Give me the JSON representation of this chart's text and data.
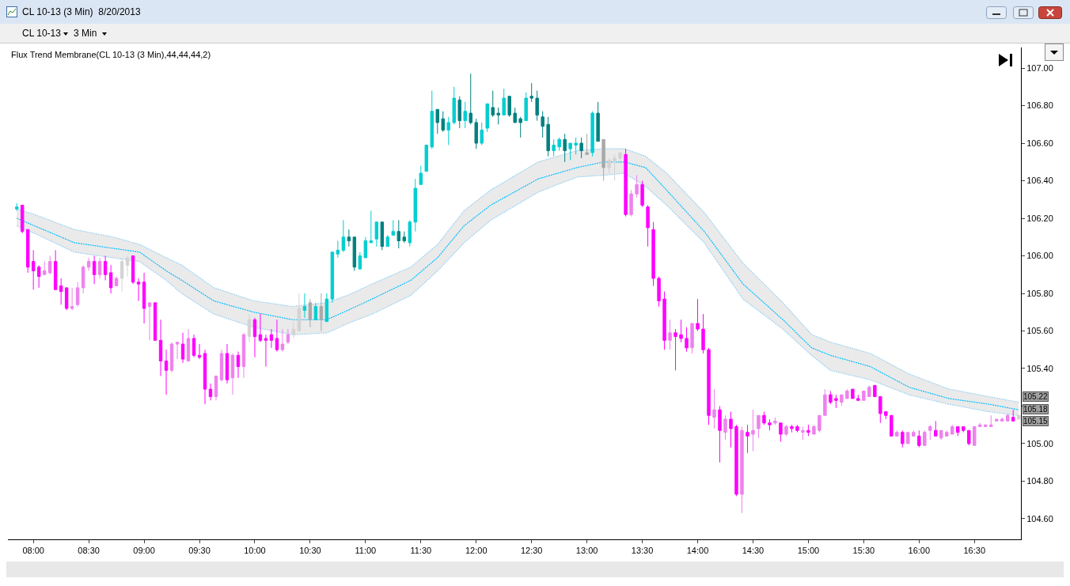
{
  "chart_data": {
    "type": "candlestick",
    "title": "CL 10-13 (3 Min)  8/20/2013",
    "subtitle": "Flux Trend Membrane(CL 10-13 (3 Min),44,44,44,2)",
    "annotations": [
      "CL 10-13",
      "3 Min",
      "105.22",
      "105.18",
      "105.15"
    ],
    "xlim": [
      7.77,
      16.92
    ],
    "xticks": [
      {
        "value": 8,
        "label": "08:00"
      },
      {
        "value": 8.5,
        "label": "08:30"
      },
      {
        "value": 9,
        "label": "09:00"
      },
      {
        "value": 9.5,
        "label": "09:30"
      },
      {
        "value": 10,
        "label": "10:00"
      },
      {
        "value": 10.5,
        "label": "10:30"
      },
      {
        "value": 11,
        "label": "11:00"
      },
      {
        "value": 11.5,
        "label": "11:30"
      },
      {
        "value": 12,
        "label": "12:00"
      },
      {
        "value": 12.5,
        "label": "12:30"
      },
      {
        "value": 13,
        "label": "13:00"
      },
      {
        "value": 13.5,
        "label": "13:30"
      },
      {
        "value": 14,
        "label": "14:00"
      },
      {
        "value": 14.5,
        "label": "14:30"
      },
      {
        "value": 15,
        "label": "15:00"
      },
      {
        "value": 15.5,
        "label": "15:30"
      },
      {
        "value": 16,
        "label": "16:00"
      },
      {
        "value": 16.5,
        "label": "16:30"
      }
    ],
    "ylim": [
      104.49,
      107.11
    ],
    "yticks": [
      {
        "value": 104.6,
        "label": "104.60"
      },
      {
        "value": 104.8,
        "label": "104.80"
      },
      {
        "value": 105,
        "label": "105.00"
      },
      {
        "value": 105.2,
        "label": null
      },
      {
        "value": 105.4,
        "label": "105.40"
      },
      {
        "value": 105.6,
        "label": "105.60"
      },
      {
        "value": 105.8,
        "label": "105.80"
      },
      {
        "value": 106,
        "label": "106.00"
      },
      {
        "value": 106.2,
        "label": "106.20"
      },
      {
        "value": 106.4,
        "label": "106.40"
      },
      {
        "value": 106.6,
        "label": "106.60"
      },
      {
        "value": 106.8,
        "label": "106.80"
      },
      {
        "value": 107,
        "label": "107.00"
      }
    ],
    "series": [
      {
        "type": "line",
        "color": "#87cefa",
        "line_style": "dotted",
        "x": [
          7.85,
          8.01,
          8.37,
          8.72,
          8.96,
          9.2,
          9.34,
          9.63,
          9.99,
          10.34,
          10.65,
          10.84,
          11.06,
          11.41,
          11.65,
          11.89,
          12.13,
          12.56,
          12.91,
          13.15,
          13.34,
          13.53,
          13.72,
          14.06,
          14.41,
          14.77,
          15.03,
          15.2,
          15.56,
          15.91,
          16.27,
          16.63,
          16.9
        ],
        "values": [
          106.25,
          106.22,
          106.14,
          106.1,
          106.06,
          105.99,
          105.95,
          105.83,
          105.76,
          105.73,
          105.75,
          105.79,
          105.85,
          105.94,
          106.06,
          106.24,
          106.35,
          106.5,
          106.56,
          106.57,
          106.57,
          106.53,
          106.44,
          106.23,
          105.96,
          105.75,
          105.58,
          105.54,
          105.48,
          105.37,
          105.29,
          105.25,
          105.22
        ]
      },
      {
        "type": "line",
        "color": "#87cefa",
        "line_style": "dotted",
        "x": [
          7.85,
          8.01,
          8.37,
          8.72,
          8.96,
          9.2,
          9.34,
          9.63,
          9.99,
          10.34,
          10.65,
          10.84,
          11.06,
          11.41,
          11.65,
          11.89,
          12.13,
          12.56,
          12.91,
          13.15,
          13.34,
          13.53,
          13.72,
          14.06,
          14.41,
          14.77,
          15.03,
          15.2,
          15.56,
          15.91,
          16.27,
          16.63,
          16.9
        ],
        "values": [
          106.16,
          106.12,
          106.02,
          105.99,
          105.97,
          105.87,
          105.8,
          105.69,
          105.62,
          105.58,
          105.59,
          105.64,
          105.69,
          105.79,
          105.92,
          106.07,
          106.19,
          106.34,
          106.42,
          106.43,
          106.44,
          106.37,
          106.27,
          106.07,
          105.77,
          105.61,
          105.47,
          105.39,
          105.34,
          105.26,
          105.21,
          105.17,
          105.15
        ]
      },
      {
        "type": "line",
        "color": "#00bfff",
        "line_style": "dotted",
        "x": [
          7.85,
          8.01,
          8.37,
          8.72,
          8.96,
          9.2,
          9.34,
          9.63,
          9.99,
          10.34,
          10.65,
          10.84,
          11.06,
          11.41,
          11.65,
          11.89,
          12.13,
          12.56,
          12.91,
          13.15,
          13.34,
          13.53,
          13.72,
          14.06,
          14.41,
          14.77,
          15.03,
          15.2,
          15.56,
          15.91,
          16.27,
          16.63,
          16.9
        ],
        "values": [
          106.2,
          106.16,
          106.07,
          106.04,
          106.02,
          105.92,
          105.87,
          105.76,
          105.7,
          105.66,
          105.66,
          105.71,
          105.77,
          105.87,
          105.99,
          106.16,
          106.27,
          106.41,
          106.47,
          106.5,
          106.5,
          106.47,
          106.35,
          106.13,
          105.85,
          105.66,
          105.51,
          105.47,
          105.41,
          105.3,
          105.24,
          105.21,
          105.18
        ],
        "upper": [
          106.25,
          106.22,
          106.14,
          106.1,
          106.06,
          105.99,
          105.95,
          105.83,
          105.76,
          105.73,
          105.75,
          105.79,
          105.85,
          105.94,
          106.06,
          106.24,
          106.35,
          106.5,
          106.56,
          106.57,
          106.57,
          106.53,
          106.44,
          106.23,
          105.96,
          105.75,
          105.58,
          105.54,
          105.48,
          105.37,
          105.29,
          105.25,
          105.22
        ],
        "lower": [
          106.16,
          106.12,
          106.02,
          105.99,
          105.97,
          105.87,
          105.8,
          105.69,
          105.62,
          105.58,
          105.59,
          105.64,
          105.69,
          105.79,
          105.92,
          106.07,
          106.19,
          106.34,
          106.42,
          106.43,
          106.44,
          106.37,
          106.27,
          106.07,
          105.77,
          105.61,
          105.47,
          105.39,
          105.34,
          105.26,
          105.21,
          105.17,
          105.15
        ]
      },
      {
        "x": [
          7.85,
          7.9,
          7.95,
          8,
          8.05,
          8.1,
          8.15,
          8.2,
          8.25,
          8.3,
          8.35,
          8.4,
          8.45,
          8.5,
          8.55,
          8.6,
          8.65,
          8.7,
          8.75,
          8.8,
          8.85,
          8.9,
          8.95,
          9,
          9.05,
          9.1,
          9.15,
          9.2,
          9.25,
          9.3,
          9.35,
          9.4,
          9.45,
          9.5,
          9.55,
          9.6,
          9.65,
          9.7,
          9.75,
          9.8,
          9.85,
          9.9,
          9.95,
          10,
          10.05,
          10.1,
          10.15,
          10.2,
          10.25,
          10.3,
          10.35,
          10.4,
          10.45,
          10.5,
          10.55,
          10.6,
          10.65,
          10.7,
          10.75,
          10.8,
          10.85,
          10.9,
          10.95,
          11,
          11.05,
          11.1,
          11.15,
          11.2,
          11.25,
          11.3,
          11.35,
          11.4,
          11.45,
          11.5,
          11.55,
          11.6,
          11.65,
          11.7,
          11.75,
          11.8,
          11.85,
          11.9,
          11.95,
          12,
          12.05,
          12.1,
          12.15,
          12.2,
          12.25,
          12.3,
          12.35,
          12.4,
          12.45,
          12.5,
          12.55,
          12.6,
          12.65,
          12.7,
          12.75,
          12.8,
          12.85,
          12.9,
          12.95,
          13,
          13.05,
          13.1,
          13.15,
          13.2,
          13.25,
          13.3,
          13.35,
          13.4,
          13.45,
          13.5,
          13.55,
          13.6,
          13.65,
          13.7,
          13.75,
          13.8,
          13.85,
          13.9,
          13.95,
          14,
          14.05,
          14.1,
          14.15,
          14.2,
          14.25,
          14.3,
          14.35,
          14.4,
          14.45,
          14.5,
          14.55,
          14.6,
          14.65,
          14.7,
          14.75,
          14.8,
          14.85,
          14.9,
          14.95,
          15,
          15.05,
          15.1,
          15.15,
          15.2,
          15.25,
          15.3,
          15.35,
          15.4,
          15.45,
          15.5,
          15.55,
          15.6,
          15.65,
          15.7,
          15.75,
          15.8,
          15.85,
          15.9,
          15.95,
          16,
          16.05,
          16.1,
          16.15,
          16.2,
          16.25,
          16.3,
          16.35,
          16.4,
          16.45,
          16.5,
          16.55,
          16.6,
          16.65,
          16.7,
          16.75,
          16.8,
          16.85,
          16.9
        ],
        "ohlc": [
          [
            106.25,
            106.28,
            106.24,
            106.26
          ],
          [
            106.27,
            106.27,
            106.12,
            106.13
          ],
          [
            106.14,
            106.14,
            105.91,
            105.94
          ],
          [
            105.97,
            106.03,
            105.82,
            105.92
          ],
          [
            105.94,
            105.95,
            105.83,
            105.89
          ],
          [
            105.9,
            105.97,
            105.9,
            105.92
          ],
          [
            105.91,
            106.0,
            105.9,
            105.97
          ],
          [
            105.97,
            106.03,
            105.82,
            105.82
          ],
          [
            105.84,
            105.88,
            105.74,
            105.81
          ],
          [
            105.83,
            105.83,
            105.71,
            105.72
          ],
          [
            105.72,
            105.83,
            105.71,
            105.73
          ],
          [
            105.74,
            105.86,
            105.73,
            105.83
          ],
          [
            105.83,
            105.95,
            105.8,
            105.94
          ],
          [
            105.94,
            105.99,
            105.92,
            105.97
          ],
          [
            105.97,
            106.0,
            105.85,
            105.9
          ],
          [
            105.9,
            105.99,
            105.88,
            105.97
          ],
          [
            105.97,
            106.0,
            105.87,
            105.9
          ],
          [
            105.91,
            105.95,
            105.8,
            105.83
          ],
          [
            105.84,
            105.89,
            105.84,
            105.88
          ],
          [
            105.88,
            105.99,
            105.81,
            105.97
          ],
          [
            105.95,
            106.0,
            105.89,
            105.99
          ],
          [
            106.0,
            106.0,
            105.85,
            105.86
          ],
          [
            105.86,
            105.88,
            105.76,
            105.85
          ],
          [
            105.86,
            105.91,
            105.64,
            105.72
          ],
          [
            105.73,
            105.75,
            105.55,
            105.75
          ],
          [
            105.75,
            105.75,
            105.55,
            105.55
          ],
          [
            105.55,
            105.66,
            105.36,
            105.44
          ],
          [
            105.44,
            105.5,
            105.26,
            105.39
          ],
          [
            105.39,
            105.54,
            105.38,
            105.53
          ],
          [
            105.53,
            105.54,
            105.45,
            105.54
          ],
          [
            105.53,
            105.59,
            105.43,
            105.45
          ],
          [
            105.44,
            105.61,
            105.44,
            105.56
          ],
          [
            105.56,
            105.58,
            105.46,
            105.47
          ],
          [
            105.47,
            105.53,
            105.45,
            105.46
          ],
          [
            105.48,
            105.5,
            105.21,
            105.29
          ],
          [
            105.29,
            105.32,
            105.23,
            105.25
          ],
          [
            105.25,
            105.36,
            105.23,
            105.36
          ],
          [
            105.34,
            105.5,
            105.33,
            105.48
          ],
          [
            105.48,
            105.53,
            105.32,
            105.34
          ],
          [
            105.35,
            105.48,
            105.26,
            105.47
          ],
          [
            105.47,
            105.49,
            105.35,
            105.41
          ],
          [
            105.41,
            105.59,
            105.35,
            105.58
          ],
          [
            105.57,
            105.69,
            105.54,
            105.66
          ],
          [
            105.66,
            105.67,
            105.46,
            105.57
          ],
          [
            105.58,
            105.69,
            105.54,
            105.55
          ],
          [
            105.56,
            105.58,
            105.41,
            105.55
          ],
          [
            105.58,
            105.61,
            105.51,
            105.55
          ],
          [
            105.56,
            105.66,
            105.49,
            105.5
          ],
          [
            105.5,
            105.61,
            105.49,
            105.53
          ],
          [
            105.54,
            105.61,
            105.53,
            105.58
          ],
          [
            105.58,
            105.65,
            105.56,
            105.61
          ],
          [
            105.6,
            105.8,
            105.6,
            105.72
          ],
          [
            105.71,
            105.8,
            105.67,
            105.73
          ],
          [
            105.75,
            105.77,
            105.62,
            105.66
          ],
          [
            105.66,
            105.75,
            105.66,
            105.73
          ],
          [
            105.73,
            105.8,
            105.6,
            105.66
          ],
          [
            105.65,
            105.8,
            105.65,
            105.77
          ],
          [
            105.77,
            106.02,
            105.75,
            106.02
          ],
          [
            106.01,
            106.08,
            105.99,
            106.03
          ],
          [
            106.03,
            106.19,
            106.02,
            106.1
          ],
          [
            106.1,
            106.14,
            106.05,
            106.08
          ],
          [
            106.1,
            106.1,
            105.92,
            105.94
          ],
          [
            105.93,
            106.02,
            105.93,
            106.0
          ],
          [
            105.99,
            106.1,
            105.99,
            106.08
          ],
          [
            106.07,
            106.24,
            106.07,
            106.08
          ],
          [
            106.09,
            106.18,
            106.05,
            106.18
          ],
          [
            106.18,
            106.18,
            106.03,
            106.05
          ],
          [
            106.05,
            106.11,
            106.05,
            106.1
          ],
          [
            106.11,
            106.19,
            106.11,
            106.13
          ],
          [
            106.13,
            106.19,
            106.04,
            106.08
          ],
          [
            106.1,
            106.13,
            106.07,
            106.08
          ],
          [
            106.07,
            106.19,
            106.05,
            106.18
          ],
          [
            106.18,
            106.41,
            106.13,
            106.36
          ],
          [
            106.38,
            106.48,
            106.38,
            106.44
          ],
          [
            106.45,
            106.59,
            106.45,
            106.59
          ],
          [
            106.58,
            106.88,
            106.57,
            106.77
          ],
          [
            106.78,
            106.78,
            106.65,
            106.71
          ],
          [
            106.73,
            106.77,
            106.66,
            106.67
          ],
          [
            106.67,
            106.74,
            106.59,
            106.71
          ],
          [
            106.71,
            106.9,
            106.7,
            106.84
          ],
          [
            106.83,
            106.85,
            106.68,
            106.72
          ],
          [
            106.72,
            106.82,
            106.68,
            106.77
          ],
          [
            106.76,
            106.97,
            106.7,
            106.71
          ],
          [
            106.71,
            106.73,
            106.57,
            106.6
          ],
          [
            106.6,
            106.71,
            106.59,
            106.67
          ],
          [
            106.68,
            106.81,
            106.66,
            106.81
          ],
          [
            106.79,
            106.88,
            106.74,
            106.75
          ],
          [
            106.76,
            106.79,
            106.7,
            106.75
          ],
          [
            106.75,
            106.89,
            106.75,
            106.84
          ],
          [
            106.85,
            106.85,
            106.74,
            106.75
          ],
          [
            106.76,
            106.79,
            106.71,
            106.71
          ],
          [
            106.73,
            106.74,
            106.63,
            106.71
          ],
          [
            106.72,
            106.87,
            106.72,
            106.84
          ],
          [
            106.85,
            106.92,
            106.82,
            106.84
          ],
          [
            106.84,
            106.88,
            106.72,
            106.75
          ],
          [
            106.74,
            106.77,
            106.63,
            106.69
          ],
          [
            106.7,
            106.74,
            106.53,
            106.56
          ],
          [
            106.56,
            106.62,
            106.53,
            106.59
          ],
          [
            106.58,
            106.63,
            106.56,
            106.62
          ],
          [
            106.62,
            106.65,
            106.5,
            106.56
          ],
          [
            106.57,
            106.6,
            106.51,
            106.6
          ],
          [
            106.59,
            106.63,
            106.54,
            106.6
          ],
          [
            106.6,
            106.63,
            106.52,
            106.56
          ],
          [
            106.55,
            106.65,
            106.54,
            106.54
          ],
          [
            106.55,
            106.77,
            106.53,
            106.76
          ],
          [
            106.76,
            106.82,
            106.61,
            106.61
          ],
          [
            106.62,
            106.62,
            106.4,
            106.47
          ],
          [
            106.47,
            106.52,
            106.44,
            106.51
          ],
          [
            106.5,
            106.54,
            106.4,
            106.52
          ],
          [
            106.52,
            106.55,
            106.49,
            106.55
          ],
          [
            106.54,
            106.57,
            106.21,
            106.22
          ],
          [
            106.22,
            106.35,
            106.21,
            106.33
          ],
          [
            106.33,
            106.43,
            106.31,
            106.38
          ],
          [
            106.38,
            106.4,
            106.26,
            106.27
          ],
          [
            106.26,
            106.27,
            106.05,
            106.15
          ],
          [
            106.14,
            106.18,
            105.84,
            105.88
          ],
          [
            105.88,
            105.89,
            105.73,
            105.76
          ],
          [
            105.77,
            105.81,
            105.5,
            105.55
          ],
          [
            105.55,
            105.66,
            105.5,
            105.59
          ],
          [
            105.59,
            105.61,
            105.39,
            105.57
          ],
          [
            105.58,
            105.66,
            105.54,
            105.56
          ],
          [
            105.56,
            105.62,
            105.49,
            105.51
          ],
          [
            105.51,
            105.64,
            105.48,
            105.64
          ],
          [
            105.64,
            105.77,
            105.6,
            105.61
          ],
          [
            105.61,
            105.69,
            105.48,
            105.5
          ],
          [
            105.5,
            105.51,
            105.1,
            105.15
          ],
          [
            105.14,
            105.29,
            105.08,
            105.18
          ],
          [
            105.18,
            105.2,
            104.9,
            105.07
          ],
          [
            105.06,
            105.15,
            105.02,
            105.13
          ],
          [
            105.13,
            105.17,
            104.98,
            105.08
          ],
          [
            105.09,
            105.1,
            104.72,
            104.73
          ],
          [
            104.73,
            105.09,
            104.63,
            105.07
          ],
          [
            105.06,
            105.1,
            104.95,
            105.04
          ],
          [
            105.05,
            105.18,
            104.96,
            105.07
          ],
          [
            105.08,
            105.15,
            105.03,
            105.15
          ],
          [
            105.15,
            105.17,
            105.1,
            105.11
          ],
          [
            105.11,
            105.13,
            105.07,
            105.1
          ],
          [
            105.11,
            105.14,
            105.1,
            105.12
          ],
          [
            105.11,
            105.11,
            105.01,
            105.05
          ],
          [
            105.05,
            105.1,
            105.04,
            105.09
          ],
          [
            105.09,
            105.1,
            105.06,
            105.08
          ],
          [
            105.09,
            105.1,
            105.06,
            105.07
          ],
          [
            105.06,
            105.09,
            105.02,
            105.07
          ],
          [
            105.07,
            105.1,
            105.04,
            105.06
          ],
          [
            105.05,
            105.1,
            105.05,
            105.09
          ],
          [
            105.07,
            105.15,
            105.06,
            105.15
          ],
          [
            105.15,
            105.29,
            105.15,
            105.26
          ],
          [
            105.26,
            105.28,
            105.21,
            105.22
          ],
          [
            105.24,
            105.26,
            105.19,
            105.23
          ],
          [
            105.22,
            105.26,
            105.2,
            105.26
          ],
          [
            105.24,
            105.29,
            105.24,
            105.28
          ],
          [
            105.29,
            105.29,
            105.24,
            105.24
          ],
          [
            105.24,
            105.26,
            105.23,
            105.23
          ],
          [
            105.23,
            105.28,
            105.23,
            105.28
          ],
          [
            105.25,
            105.31,
            105.25,
            105.3
          ],
          [
            105.31,
            105.31,
            105.25,
            105.25
          ],
          [
            105.25,
            105.25,
            105.11,
            105.16
          ],
          [
            105.17,
            105.17,
            105.13,
            105.15
          ],
          [
            105.15,
            105.15,
            105.04,
            105.04
          ],
          [
            105.04,
            105.07,
            105.04,
            105.06
          ],
          [
            105.06,
            105.07,
            104.98,
            105.0
          ],
          [
            105.0,
            105.06,
            105.0,
            105.06
          ],
          [
            105.04,
            105.07,
            105.04,
            105.06
          ],
          [
            105.04,
            105.07,
            104.98,
            104.99
          ],
          [
            104.99,
            105.07,
            104.99,
            105.06
          ],
          [
            105.07,
            105.1,
            105.02,
            105.09
          ],
          [
            105.07,
            105.12,
            105.04,
            105.04
          ],
          [
            105.03,
            105.07,
            105.02,
            105.07
          ],
          [
            105.04,
            105.07,
            105.04,
            105.06
          ],
          [
            105.05,
            105.1,
            105.05,
            105.09
          ],
          [
            105.09,
            105.09,
            105.04,
            105.06
          ],
          [
            105.09,
            105.09,
            105.06,
            105.07
          ],
          [
            105.07,
            105.07,
            104.99,
            105.0
          ],
          [
            104.99,
            105.09,
            104.99,
            105.09
          ],
          [
            105.09,
            105.11,
            105.09,
            105.1
          ],
          [
            105.09,
            105.1,
            105.09,
            105.1
          ],
          [
            105.09,
            105.15,
            105.09,
            105.1
          ],
          [
            105.12,
            105.13,
            105.12,
            105.13
          ],
          [
            105.12,
            105.14,
            105.12,
            105.13
          ],
          [
            105.12,
            105.16,
            105.12,
            105.15
          ],
          [
            105.14,
            105.18,
            105.12,
            105.12
          ],
          [
            105.13,
            105.15,
            105.13,
            105.15
          ]
        ],
        "colors": [
          "#00ced1",
          "#ff00ff",
          "#ff00ff",
          "#ff00ff",
          "#ff00ff",
          "#ee82ee",
          "#ee82ee",
          "#ff00ff",
          "#ff00ff",
          "#ff00ff",
          "#ee82ee",
          "#ee82ee",
          "#ee82ee",
          "#ee82ee",
          "#ff00ff",
          "#ee82ee",
          "#ff00ff",
          "#ff00ff",
          "#ee82ee",
          "#d3d3d3",
          "#d3d3d3",
          "#ff00ff",
          "#ff00ff",
          "#ff00ff",
          "#ee82ee",
          "#ff00ff",
          "#ff00ff",
          "#ff00ff",
          "#ee82ee",
          "#ee82ee",
          "#ff00ff",
          "#ee82ee",
          "#ff00ff",
          "#ff00ff",
          "#ff00ff",
          "#ff00ff",
          "#ee82ee",
          "#ee82ee",
          "#ff00ff",
          "#ee82ee",
          "#ff00ff",
          "#ee82ee",
          "#d3d3d3",
          "#ff00ff",
          "#ff00ff",
          "#ff00ff",
          "#ff00ff",
          "#ff00ff",
          "#ee82ee",
          "#ee82ee",
          "#d3d3d3",
          "#d3d3d3",
          "#00ced1",
          "#a9a9a9",
          "#00ced1",
          "#a9a9a9",
          "#00ced1",
          "#00ced1",
          "#00ced1",
          "#00ced1",
          "#008080",
          "#008080",
          "#00ced1",
          "#00ced1",
          "#00ced1",
          "#00ced1",
          "#008080",
          "#00ced1",
          "#00ced1",
          "#008080",
          "#008080",
          "#00ced1",
          "#00ced1",
          "#00ced1",
          "#00ced1",
          "#00ced1",
          "#008080",
          "#008080",
          "#00ced1",
          "#00ced1",
          "#008080",
          "#00ced1",
          "#008080",
          "#008080",
          "#00ced1",
          "#00ced1",
          "#008080",
          "#008080",
          "#00ced1",
          "#008080",
          "#008080",
          "#008080",
          "#00ced1",
          "#008080",
          "#008080",
          "#008080",
          "#008080",
          "#00ced1",
          "#00ced1",
          "#008080",
          "#00ced1",
          "#00ced1",
          "#008080",
          "#a9a9a9",
          "#00ced1",
          "#008080",
          "#a9a9a9",
          "#d3d3d3",
          "#d3d3d3",
          "#d3d3d3",
          "#ff00ff",
          "#ee82ee",
          "#ee82ee",
          "#ff00ff",
          "#ff00ff",
          "#ff00ff",
          "#ff00ff",
          "#ff00ff",
          "#ee82ee",
          "#ff00ff",
          "#ff00ff",
          "#ff00ff",
          "#ee82ee",
          "#ff00ff",
          "#ff00ff",
          "#ff00ff",
          "#ee82ee",
          "#ff00ff",
          "#ee82ee",
          "#ff00ff",
          "#ff00ff",
          "#ee82ee",
          "#ff00ff",
          "#ee82ee",
          "#ee82ee",
          "#ff00ff",
          "#ff00ff",
          "#ee82ee",
          "#ff00ff",
          "#ee82ee",
          "#ff00ff",
          "#ff00ff",
          "#ee82ee",
          "#ff00ff",
          "#ee82ee",
          "#ee82ee",
          "#ee82ee",
          "#ff00ff",
          "#ff00ff",
          "#ee82ee",
          "#ee82ee",
          "#ff00ff",
          "#ff00ff",
          "#ee82ee",
          "#ee82ee",
          "#ff00ff",
          "#ff00ff",
          "#ff00ff",
          "#ff00ff",
          "#ee82ee",
          "#ff00ff",
          "#ee82ee",
          "#ee82ee",
          "#ff00ff",
          "#ee82ee",
          "#ee82ee",
          "#ff00ff",
          "#ee82ee",
          "#ee82ee",
          "#ee82ee",
          "#ff00ff",
          "#ff00ff",
          "#ff00ff",
          "#ee82ee",
          "#ee82ee",
          "#ee82ee",
          "#ee82ee",
          "#ee82ee",
          "#ee82ee",
          "#ee82ee",
          "#ff00ff",
          "#d3d3d3"
        ]
      }
    ]
  }
}
